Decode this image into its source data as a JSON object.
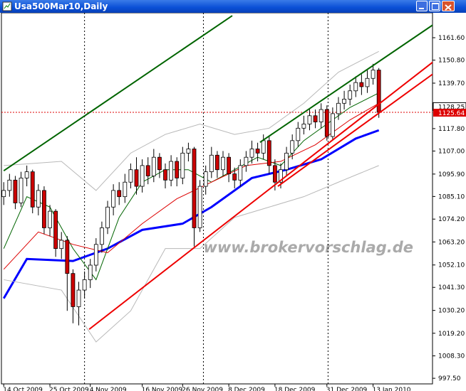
{
  "window": {
    "title": "Usa500Mar10,Daily"
  },
  "watermark": "www.brokervorschlag.de",
  "chart_data": {
    "type": "candlestick",
    "categories": [
      "14 Oct 2009",
      null,
      null,
      null,
      null,
      null,
      null,
      null,
      "25 Oct 2009",
      null,
      null,
      null,
      null,
      null,
      null,
      "4 Nov 2009",
      null,
      null,
      null,
      null,
      null,
      null,
      null,
      null,
      "16 Nov 2009",
      null,
      null,
      null,
      null,
      null,
      null,
      "26 Nov 2009",
      null,
      null,
      null,
      null,
      null,
      null,
      null,
      "8 Dec 2009",
      null,
      null,
      null,
      null,
      null,
      null,
      null,
      "18 Dec 2009",
      null,
      null,
      null,
      null,
      null,
      null,
      null,
      null,
      "31 Dec 2009",
      null,
      null,
      null,
      null,
      null,
      null,
      null,
      "13 Jan 2010",
      null
    ],
    "open": [
      1085,
      1088,
      1093,
      1082,
      1094,
      1097,
      1080,
      1088,
      1070,
      1078,
      1060,
      1064,
      1048,
      1032,
      1040,
      1045,
      1052,
      1062,
      1070,
      1080,
      1088,
      1085,
      1092,
      1098,
      1090,
      1100,
      1095,
      1104,
      1098,
      1093,
      1102,
      1094,
      1106,
      1108,
      1070,
      1090,
      1097,
      1105,
      1098,
      1104,
      1096,
      1093,
      1100,
      1104,
      1108,
      1106,
      1112,
      1100,
      1092,
      1098,
      1106,
      1112,
      1118,
      1120,
      1124,
      1121,
      1127,
      1114,
      1125,
      1130,
      1132,
      1136,
      1140,
      1138,
      1142,
      1146
    ],
    "high": [
      1092,
      1096,
      1095,
      1097,
      1100,
      1098,
      1091,
      1090,
      1081,
      1079,
      1068,
      1066,
      1050,
      1044,
      1049,
      1055,
      1065,
      1073,
      1083,
      1091,
      1092,
      1096,
      1101,
      1104,
      1103,
      1104,
      1108,
      1106,
      1101,
      1105,
      1104,
      1109,
      1111,
      1109,
      1093,
      1100,
      1109,
      1107,
      1107,
      1106,
      1099,
      1103,
      1107,
      1112,
      1111,
      1115,
      1114,
      1103,
      1101,
      1109,
      1115,
      1121,
      1124,
      1127,
      1127,
      1130,
      1129,
      1128,
      1133,
      1136,
      1139,
      1143,
      1144,
      1146,
      1149,
      1147
    ],
    "low": [
      1081,
      1085,
      1079,
      1080,
      1090,
      1077,
      1076,
      1067,
      1066,
      1056,
      1055,
      1030,
      1024,
      1023,
      1036,
      1041,
      1049,
      1058,
      1067,
      1076,
      1081,
      1082,
      1089,
      1086,
      1087,
      1091,
      1092,
      1094,
      1089,
      1090,
      1090,
      1091,
      1102,
      1061,
      1068,
      1086,
      1094,
      1094,
      1095,
      1092,
      1089,
      1090,
      1097,
      1101,
      1102,
      1103,
      1096,
      1088,
      1089,
      1095,
      1103,
      1109,
      1115,
      1117,
      1118,
      1118,
      1112,
      1112,
      1122,
      1127,
      1129,
      1133,
      1134,
      1135,
      1139,
      1123
    ],
    "close": [
      1088,
      1093,
      1082,
      1094,
      1097,
      1080,
      1088,
      1070,
      1078,
      1060,
      1064,
      1048,
      1032,
      1040,
      1045,
      1052,
      1062,
      1070,
      1080,
      1088,
      1085,
      1092,
      1098,
      1090,
      1100,
      1095,
      1104,
      1098,
      1093,
      1102,
      1094,
      1106,
      1108,
      1070,
      1090,
      1097,
      1105,
      1098,
      1104,
      1096,
      1093,
      1100,
      1104,
      1108,
      1106,
      1112,
      1100,
      1092,
      1098,
      1106,
      1112,
      1118,
      1120,
      1124,
      1121,
      1127,
      1114,
      1125,
      1130,
      1132,
      1136,
      1140,
      1138,
      1142,
      1146,
      1125.64
    ],
    "up_color": "#ffffff",
    "down_color": "#cc0000",
    "xlim": [
      -0.4,
      74.3
    ],
    "ylim": [
      994.8,
      1173.6
    ],
    "yticks": [
      {
        "value": 997.5,
        "label": "997.50"
      },
      {
        "value": 1008.3,
        "label": "1008.30"
      },
      {
        "value": 1019.2,
        "label": "1019.20"
      },
      {
        "value": 1030.2,
        "label": "1030.20"
      },
      {
        "value": 1041.3,
        "label": "1041.30"
      },
      {
        "value": 1052.1,
        "label": "1052.10"
      },
      {
        "value": 1063.2,
        "label": "1063.20"
      },
      {
        "value": 1074.2,
        "label": "1074.20"
      },
      {
        "value": 1085.1,
        "label": "1085.10"
      },
      {
        "value": 1095.9,
        "label": "1095.90"
      },
      {
        "value": 1107,
        "label": "1107.00"
      },
      {
        "value": 1117.8,
        "label": "1117.80"
      },
      {
        "value": 1139.7,
        "label": "1139.70"
      },
      {
        "value": 1150.8,
        "label": "1150.80"
      },
      {
        "value": 1161.6,
        "label": "1161.60"
      }
    ],
    "separators": [
      14,
      34.6,
      56.2
    ],
    "indicators": [
      {
        "color": "#0000ff",
        "x": [
          0,
          4,
          12,
          18,
          24,
          31,
          36,
          43,
          49,
          55,
          61,
          65
        ],
        "values": [
          1036,
          1055,
          1054,
          1060,
          1069,
          1072,
          1080,
          1094,
          1098,
          1103,
          1113,
          1117
        ]
      },
      {
        "color": "#006400",
        "x": [
          0,
          4,
          8,
          12,
          16,
          20,
          24,
          28,
          32,
          36,
          40,
          44,
          48,
          52,
          56,
          60,
          65
        ],
        "values": [
          1060,
          1085,
          1080,
          1060,
          1045,
          1075,
          1092,
          1098,
          1098,
          1092,
          1098,
          1104,
          1100,
          1112,
          1120,
          1128,
          1135
        ]
      },
      {
        "color": "#dd0000",
        "x": [
          0,
          6,
          12,
          18,
          24,
          30,
          36,
          42,
          48,
          54,
          60,
          65
        ],
        "values": [
          1050,
          1068,
          1062,
          1058,
          1072,
          1084,
          1092,
          1100,
          1102,
          1110,
          1122,
          1130
        ]
      },
      {
        "color": "#b8b8b8",
        "x": [
          0,
          10,
          16,
          22,
          28,
          34,
          40,
          46,
          52,
          58,
          65
        ],
        "values": [
          1100,
          1102,
          1088,
          1106,
          1115,
          1120,
          1115,
          1118,
          1130,
          1145,
          1155
        ]
      },
      {
        "color": "#b8b8b8",
        "x": [
          0,
          10,
          16,
          22,
          28,
          34,
          40,
          46,
          52,
          58,
          65
        ],
        "values": [
          1045,
          1040,
          1015,
          1030,
          1060,
          1060,
          1075,
          1080,
          1085,
          1092,
          1100
        ]
      }
    ],
    "trend_lines": [
      {
        "color": "#006400",
        "x": [
          0,
          39.6
        ],
        "values": [
          1097.5,
          1172.2
        ]
      },
      {
        "color": "#006400",
        "x": [
          44.4,
          74.7
        ],
        "values": [
          1111.2,
          1168.4
        ]
      },
      {
        "color": "#ee0000",
        "x": [
          14.8,
          74.7
        ],
        "values": [
          1021.1,
          1150.6
        ]
      },
      {
        "color": "#ee0000",
        "x": [
          47.5,
          74.7
        ],
        "values": [
          1090,
          1144.8
        ]
      }
    ],
    "ask_label": {
      "value": 1128.25,
      "label": "1128.25"
    },
    "price_line": {
      "value": 1125.64,
      "label": "1125.64",
      "color": "#dd0000"
    }
  }
}
